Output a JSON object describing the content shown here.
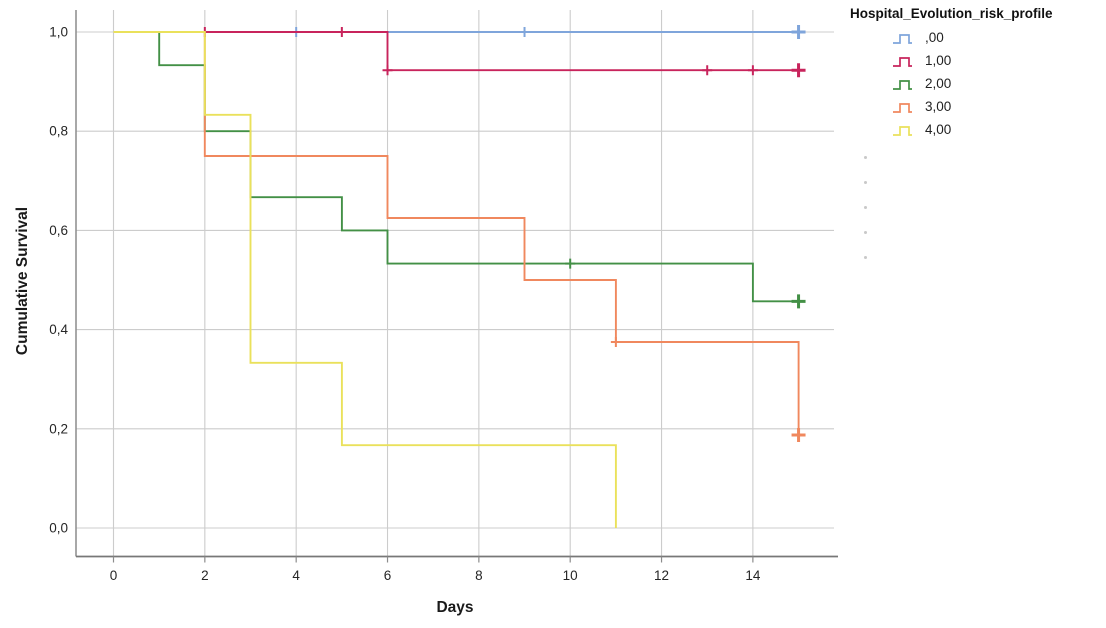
{
  "chart_data": {
    "type": "line",
    "subtype": "kaplan_meier_step",
    "title": "",
    "xlabel": "Days",
    "ylabel": "Cumulative Survival",
    "xlim": [
      0,
      15.8
    ],
    "ylim": [
      0,
      1.0
    ],
    "grid": true,
    "legend_position": "top-right",
    "legend_title": "Hospital_Evolution_risk_profile",
    "x_ticks": [
      {
        "v": 0,
        "label": "0"
      },
      {
        "v": 2,
        "label": "2"
      },
      {
        "v": 4,
        "label": "4"
      },
      {
        "v": 6,
        "label": "6"
      },
      {
        "v": 8,
        "label": "8"
      },
      {
        "v": 10,
        "label": "10"
      },
      {
        "v": 12,
        "label": "12"
      },
      {
        "v": 14,
        "label": "14"
      }
    ],
    "y_ticks": [
      {
        "v": 0.0,
        "label": "0,0"
      },
      {
        "v": 0.2,
        "label": "0,2"
      },
      {
        "v": 0.4,
        "label": "0,4"
      },
      {
        "v": 0.6,
        "label": "0,6"
      },
      {
        "v": 0.8,
        "label": "0,8"
      },
      {
        "v": 1.0,
        "label": "1,0"
      }
    ],
    "series": [
      {
        "label": ",00",
        "color": "#7FA5DB",
        "steps": [
          [
            0,
            1.0
          ],
          [
            15.1,
            1.0
          ]
        ],
        "censors": [
          [
            4,
            1.0
          ],
          [
            9,
            1.0
          ]
        ],
        "end_censor": [
          15,
          1.0
        ]
      },
      {
        "label": "1,00",
        "color": "#C8245C",
        "steps": [
          [
            0,
            1.0
          ],
          [
            6,
            1.0
          ],
          [
            6,
            0.923
          ],
          [
            15.1,
            0.923
          ]
        ],
        "censors": [
          [
            2,
            1.0
          ],
          [
            5,
            1.0
          ],
          [
            6,
            0.923
          ],
          [
            13,
            0.923
          ],
          [
            14,
            0.923
          ]
        ],
        "end_censor": [
          15,
          0.923
        ]
      },
      {
        "label": "2,00",
        "color": "#439046",
        "steps": [
          [
            0,
            1.0
          ],
          [
            1,
            1.0
          ],
          [
            1,
            0.933
          ],
          [
            2,
            0.933
          ],
          [
            2,
            0.8
          ],
          [
            3,
            0.8
          ],
          [
            3,
            0.667
          ],
          [
            5,
            0.667
          ],
          [
            5,
            0.6
          ],
          [
            6,
            0.6
          ],
          [
            6,
            0.533
          ],
          [
            14,
            0.533
          ],
          [
            14,
            0.457
          ],
          [
            15.1,
            0.457
          ]
        ],
        "censors": [
          [
            10,
            0.533
          ]
        ],
        "end_censor": [
          15,
          0.457
        ]
      },
      {
        "label": "3,00",
        "color": "#F0885E",
        "steps": [
          [
            0,
            1.0
          ],
          [
            2,
            1.0
          ],
          [
            2,
            0.75
          ],
          [
            6,
            0.75
          ],
          [
            6,
            0.625
          ],
          [
            9,
            0.625
          ],
          [
            9,
            0.5
          ],
          [
            11,
            0.5
          ],
          [
            11,
            0.375
          ],
          [
            15,
            0.375
          ],
          [
            15,
            0.1875
          ]
        ],
        "censors": [
          [
            11,
            0.375
          ]
        ],
        "end_censor": [
          15,
          0.1875
        ]
      },
      {
        "label": "4,00",
        "color": "#EAE15B",
        "steps": [
          [
            0,
            1.0
          ],
          [
            2,
            1.0
          ],
          [
            2,
            0.833
          ],
          [
            3,
            0.833
          ],
          [
            3,
            0.333
          ],
          [
            5,
            0.333
          ],
          [
            5,
            0.167
          ],
          [
            11,
            0.167
          ],
          [
            11,
            0.0
          ]
        ],
        "censors": [],
        "end_censor": null
      }
    ],
    "colors": {
      "grid": "#cccccc",
      "axis": "#8c8c8c",
      "bottom_axis": "#777777",
      "text": "#262626"
    },
    "legend_faint_dots_count": 5
  }
}
